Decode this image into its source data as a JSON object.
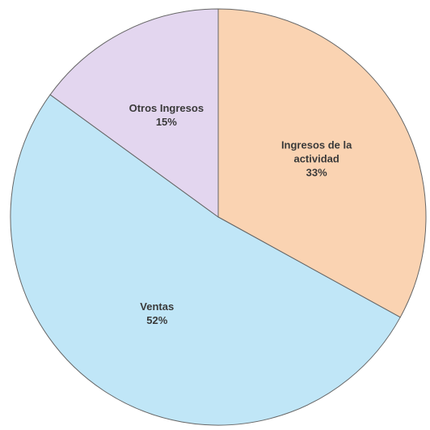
{
  "chart_data": {
    "type": "pie",
    "categories": [
      "Ingresos de la actividad",
      "Ventas",
      "Otros Ingresos"
    ],
    "values": [
      33,
      52,
      15
    ],
    "value_labels": [
      "33%",
      "52%",
      "15%"
    ],
    "colors": [
      "#fad3b2",
      "#c0e6f7",
      "#e3d6ef"
    ]
  }
}
